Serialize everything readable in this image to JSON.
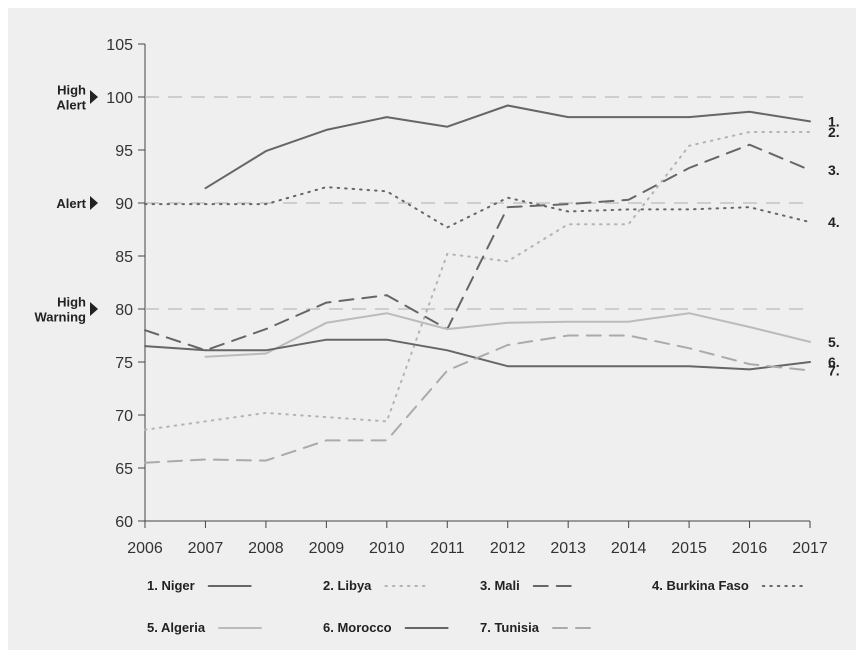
{
  "chart_data": {
    "type": "line",
    "title": "",
    "xlabel": "",
    "ylabel": "",
    "x": [
      2006,
      2007,
      2008,
      2009,
      2010,
      2011,
      2012,
      2013,
      2014,
      2015,
      2016,
      2017
    ],
    "ylim": [
      60,
      105
    ],
    "yticks": [
      60,
      65,
      70,
      75,
      80,
      85,
      90,
      95,
      100,
      105
    ],
    "grid": false,
    "legend_position": "bottom",
    "thresholds": [
      {
        "value": 100,
        "label_lines": [
          "High",
          "Alert"
        ]
      },
      {
        "value": 90,
        "label_lines": [
          "Alert"
        ]
      },
      {
        "value": 80,
        "label_lines": [
          "High",
          "Warning"
        ]
      }
    ],
    "series": [
      {
        "name": "1. Niger",
        "rank_label": "1.",
        "color": "#666666",
        "style": "solid",
        "values": [
          null,
          91.4,
          94.9,
          96.9,
          98.1,
          97.2,
          99.2,
          98.1,
          98.1,
          98.1,
          98.6,
          97.7
        ]
      },
      {
        "name": "2. Libya",
        "rank_label": "2.",
        "color": "#b3b3b3",
        "style": "dotted",
        "values": [
          68.6,
          69.4,
          70.2,
          69.8,
          69.4,
          85.2,
          84.5,
          88.0,
          88.0,
          95.4,
          96.7,
          96.7
        ]
      },
      {
        "name": "3. Mali",
        "rank_label": "3.",
        "color": "#666666",
        "style": "dashed",
        "values": [
          78.0,
          76.1,
          78.1,
          80.6,
          81.3,
          78.1,
          89.6,
          89.9,
          90.3,
          93.3,
          95.5,
          93.1
        ]
      },
      {
        "name": "4. Burkina Faso",
        "rank_label": "4.",
        "color": "#666666",
        "style": "dotted",
        "values": [
          89.9,
          89.9,
          89.9,
          91.5,
          91.1,
          87.7,
          90.5,
          89.2,
          89.4,
          89.4,
          89.6,
          88.2
        ]
      },
      {
        "name": "5. Algeria",
        "rank_label": "5.",
        "color": "#bbbbbb",
        "style": "solid",
        "values": [
          null,
          75.5,
          75.8,
          78.7,
          79.6,
          78.1,
          78.7,
          78.8,
          78.8,
          79.6,
          78.3,
          76.9
        ]
      },
      {
        "name": "6. Morocco",
        "rank_label": "6.",
        "color": "#666666",
        "style": "solid",
        "values": [
          76.5,
          76.1,
          76.1,
          77.1,
          77.1,
          76.1,
          74.6,
          74.6,
          74.6,
          74.6,
          74.3,
          75.0
        ]
      },
      {
        "name": "7. Tunisia",
        "rank_label": "7.",
        "color": "#aaaaaa",
        "style": "dashed",
        "values": [
          65.5,
          65.8,
          65.7,
          67.6,
          67.6,
          74.2,
          76.6,
          77.5,
          77.5,
          76.3,
          74.8,
          74.2
        ]
      }
    ]
  }
}
